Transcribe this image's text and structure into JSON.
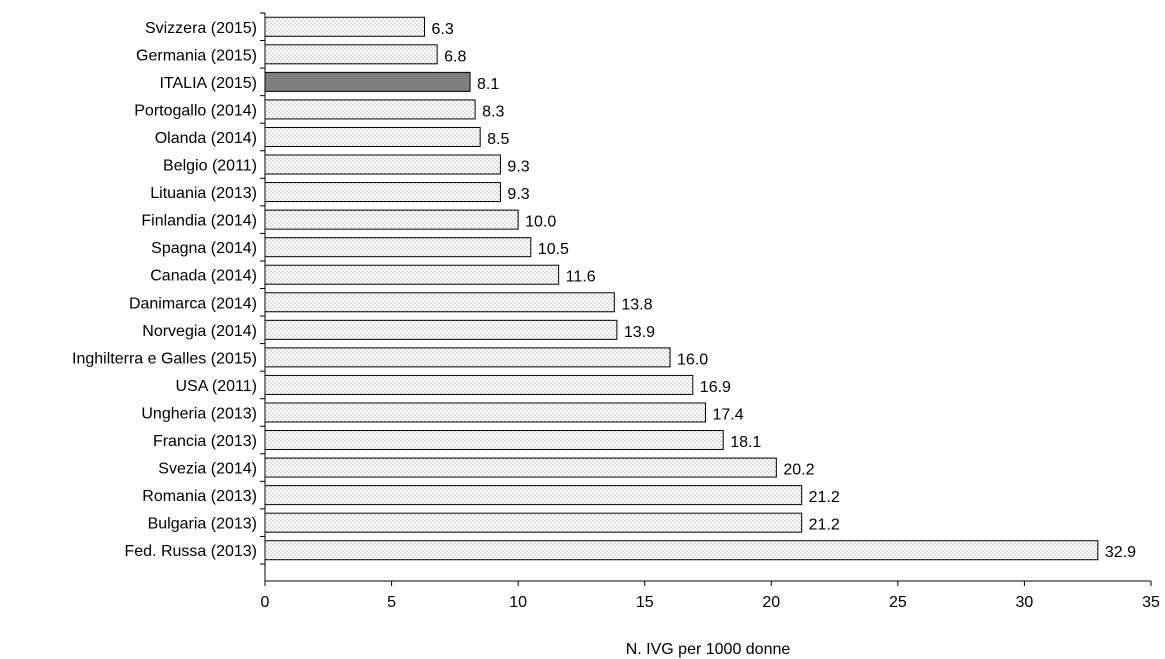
{
  "chart_data": {
    "type": "bar",
    "orientation": "horizontal",
    "categories": [
      "Svizzera (2015)",
      "Germania (2015)",
      "ITALIA (2015)",
      "Portogallo (2014)",
      "Olanda (2014)",
      "Belgio (2011)",
      "Lituania (2013)",
      "Finlandia (2014)",
      "Spagna (2014)",
      "Canada (2014)",
      "Danimarca (2014)",
      "Norvegia (2014)",
      "Inghilterra e Galles (2015)",
      "USA (2011)",
      "Ungheria (2013)",
      "Francia (2013)",
      "Svezia (2014)",
      "Romania (2013)",
      "Bulgaria (2013)",
      "Fed. Russa (2013)"
    ],
    "values": [
      6.3,
      6.8,
      8.1,
      8.3,
      8.5,
      9.3,
      9.3,
      10.0,
      10.5,
      11.6,
      13.8,
      13.9,
      16.0,
      16.9,
      17.4,
      18.1,
      20.2,
      21.2,
      21.2,
      32.9
    ],
    "value_labels": [
      "6.3",
      "6.8",
      "8.1",
      "8.3",
      "8.5",
      "9.3",
      "9.3",
      "10.0",
      "10.5",
      "11.6",
      "13.8",
      "13.9",
      "16.0",
      "16.9",
      "17.4",
      "18.1",
      "20.2",
      "21.2",
      "21.2",
      "32.9"
    ],
    "highlight_category": "ITALIA (2015)",
    "xlabel": "N. IVG per 1000 donne",
    "ylabel": "",
    "title": "",
    "xlim": [
      0,
      35
    ],
    "xticks": [
      0,
      5,
      10,
      15,
      20,
      25,
      30,
      35
    ],
    "grid": false,
    "legend": "none",
    "colors": {
      "bar_fill": "#ffffff",
      "bar_pattern_dot": "#7a7a7a",
      "highlight_fill": "#7f7f7f",
      "bar_stroke": "#000000",
      "axis": "#000000"
    }
  }
}
